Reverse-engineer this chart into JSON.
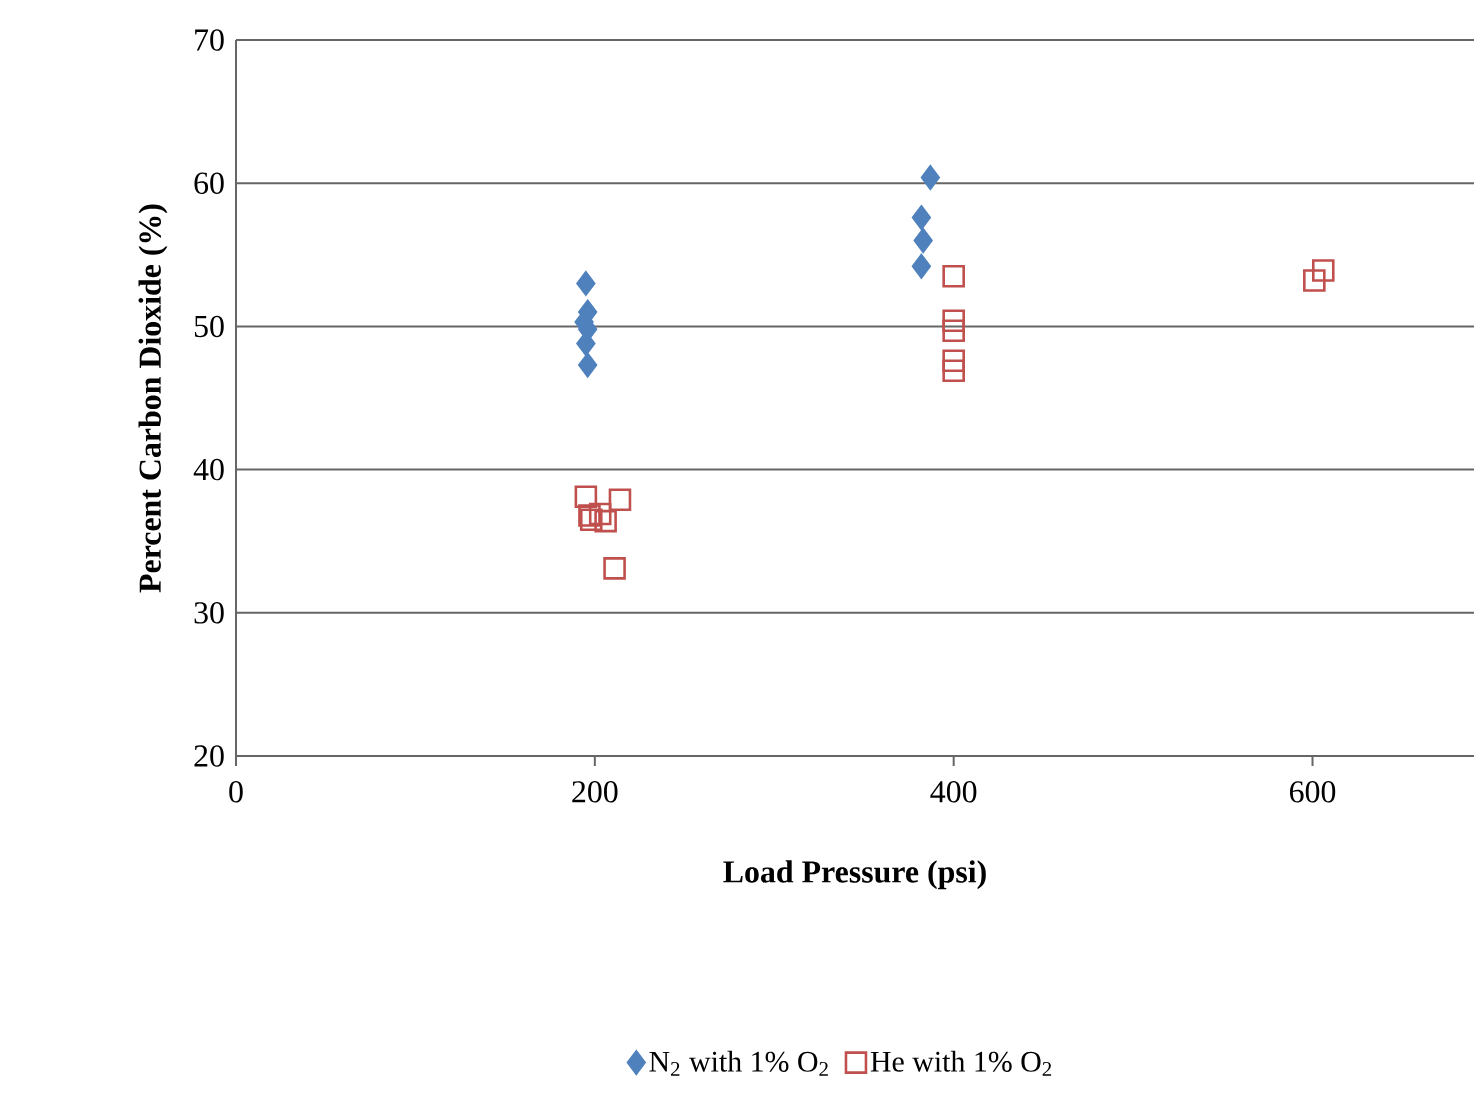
{
  "chart_data": {
    "type": "scatter",
    "xlabel": "Load Pressure (psi)",
    "ylabel": "Percent Carbon Dioxide (%)",
    "xlim": [
      0,
      690
    ],
    "xticks": [
      0,
      200,
      400,
      600
    ],
    "ylim": [
      20,
      70
    ],
    "yticks": [
      20,
      30,
      40,
      50,
      60,
      70
    ],
    "grid": "y",
    "legend": "bottom",
    "series": [
      {
        "name": "N$_{2}$ with 1% O$_{2}$",
        "color": "#4f81bd",
        "marker": "diamond",
        "x": [
          195,
          196,
          194,
          196,
          195,
          196,
          387,
          382,
          383,
          382
        ],
        "values": [
          53.0,
          51.0,
          50.3,
          49.8,
          48.8,
          47.3,
          60.4,
          57.6,
          56.0,
          54.2
        ]
      },
      {
        "name": "He with 1% O$_{2}$",
        "color": "#c0504d",
        "marker": "square",
        "x": [
          195,
          214,
          197,
          203,
          206,
          198,
          211,
          400,
          400,
          400,
          400,
          400,
          606,
          601
        ],
        "values": [
          38.1,
          37.9,
          36.8,
          36.9,
          36.4,
          36.5,
          33.1,
          53.5,
          50.4,
          49.7,
          47.6,
          46.9,
          53.9,
          53.2
        ]
      }
    ]
  }
}
